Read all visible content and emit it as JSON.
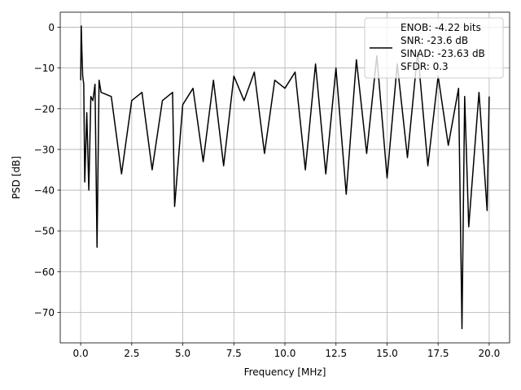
{
  "chart_data": {
    "type": "line",
    "xlabel": "Frequency [MHz]",
    "ylabel": "PSD [dB]",
    "xlim": [
      -1.0,
      21.0
    ],
    "ylim": [
      -77.5,
      3.7
    ],
    "xticks": [
      0.0,
      2.5,
      5.0,
      7.5,
      10.0,
      12.5,
      15.0,
      17.5,
      20.0
    ],
    "xtick_labels": [
      "0.0",
      "2.5",
      "5.0",
      "7.5",
      "10.0",
      "12.5",
      "15.0",
      "17.5",
      "20.0"
    ],
    "yticks": [
      0,
      -10,
      -20,
      -30,
      -40,
      -50,
      -60,
      -70
    ],
    "ytick_labels": [
      "0",
      "−10",
      "−20",
      "−30",
      "−40",
      "−50",
      "−60",
      "−70"
    ],
    "grid": true,
    "legend_position": "top-right",
    "legend_lines": [
      "ENOB: -4.22 bits",
      "SNR: -23.6 dB",
      "SINAD: -23.63 dB",
      "SFDR: 0.3"
    ],
    "series": [
      {
        "color": "#000000",
        "x": [
          0.0,
          0.03,
          0.06,
          0.1,
          0.15,
          0.2,
          0.3,
          0.4,
          0.5,
          0.6,
          0.7,
          0.8,
          0.9,
          1.0,
          1.5,
          2.0,
          2.5,
          3.0,
          3.5,
          4.0,
          4.5,
          4.6,
          5.0,
          5.5,
          6.0,
          6.5,
          7.0,
          7.5,
          8.0,
          8.5,
          9.0,
          9.5,
          10.0,
          10.5,
          11.0,
          11.5,
          12.0,
          12.5,
          13.0,
          13.5,
          14.0,
          14.5,
          15.0,
          15.5,
          16.0,
          16.5,
          17.0,
          17.5,
          18.0,
          18.5,
          18.67,
          18.8,
          19.0,
          19.5,
          19.9,
          20.0
        ],
        "y": [
          -13,
          0.3,
          -6,
          -12,
          -14,
          -38,
          -21,
          -40,
          -17,
          -18,
          -14,
          -54,
          -13,
          -16,
          -17,
          -36,
          -18,
          -16,
          -35,
          -18,
          -16,
          -44,
          -19,
          -15,
          -33,
          -13,
          -34,
          -12,
          -18,
          -11,
          -31,
          -13,
          -15,
          -11,
          -35,
          -9,
          -36,
          -10,
          -41,
          -8,
          -31,
          -7,
          -37,
          -9,
          -32,
          -6,
          -34,
          -12,
          -29,
          -15,
          -74,
          -17,
          -49,
          -16,
          -45,
          -17
        ]
      }
    ]
  }
}
